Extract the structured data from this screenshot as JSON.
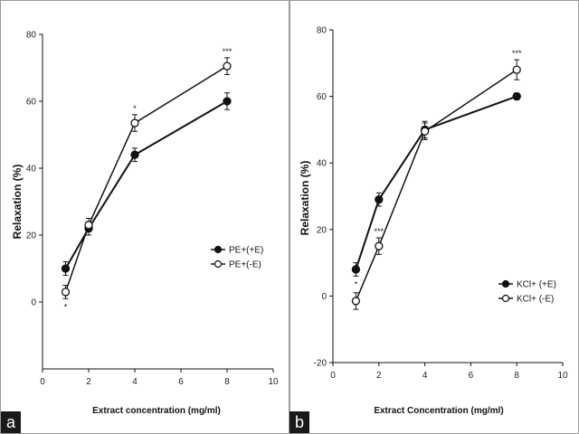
{
  "chart_data": [
    {
      "type": "line",
      "panel_label": "a",
      "xlabel": "Extract concentration (mg/ml)",
      "ylabel": "Relaxation (%)",
      "xlim": [
        0,
        10
      ],
      "ylim": [
        -20,
        80
      ],
      "xticks": [
        0,
        2,
        4,
        6,
        8,
        10
      ],
      "yticks": [
        0,
        20,
        40,
        60,
        80
      ],
      "grid": false,
      "legend_position": "center-right",
      "series": [
        {
          "name": "PE+(+E)",
          "marker": "filled-circle",
          "points": [
            {
              "x": 1,
              "y": 10,
              "err": 2
            },
            {
              "x": 2,
              "y": 22,
              "err": 2
            },
            {
              "x": 4,
              "y": 44,
              "err": 2
            },
            {
              "x": 8,
              "y": 60,
              "err": 2.5
            }
          ]
        },
        {
          "name": "PE+(-E)",
          "marker": "open-circle",
          "points": [
            {
              "x": 1,
              "y": 3,
              "err": 2
            },
            {
              "x": 2,
              "y": 23,
              "err": 2
            },
            {
              "x": 4,
              "y": 53.5,
              "err": 2.5
            },
            {
              "x": 8,
              "y": 70.5,
              "err": 2.5
            }
          ]
        }
      ],
      "annotations": [
        {
          "text": "*",
          "x": 1,
          "y": 3,
          "side": "below"
        },
        {
          "text": "*",
          "x": 4,
          "y": 53.5,
          "side": "above"
        },
        {
          "text": "***",
          "x": 8,
          "y": 70.5,
          "side": "above"
        }
      ]
    },
    {
      "type": "line",
      "panel_label": "b",
      "xlabel": "Extract Concentration (mg/ml)",
      "ylabel": "Relaxation (%)",
      "xlim": [
        0,
        10
      ],
      "ylim": [
        -20,
        80
      ],
      "xticks": [
        0,
        2,
        4,
        6,
        8,
        10
      ],
      "yticks": [
        -20,
        0,
        20,
        40,
        60,
        80
      ],
      "grid": false,
      "legend_position": "bottom-right",
      "series": [
        {
          "name": "KCl+ (+E)",
          "marker": "filled-circle",
          "points": [
            {
              "x": 1,
              "y": 8,
              "err": 2
            },
            {
              "x": 2,
              "y": 29,
              "err": 2
            },
            {
              "x": 4,
              "y": 50,
              "err": 2.5
            },
            {
              "x": 8,
              "y": 60,
              "err": 1
            }
          ]
        },
        {
          "name": "KCl+ (-E)",
          "marker": "open-circle",
          "points": [
            {
              "x": 1,
              "y": -1.5,
              "err": 2.5
            },
            {
              "x": 2,
              "y": 15,
              "err": 2.5
            },
            {
              "x": 4,
              "y": 49.5,
              "err": 2.5
            },
            {
              "x": 8,
              "y": 68,
              "err": 3
            }
          ]
        }
      ],
      "annotations": [
        {
          "text": "*",
          "x": 1,
          "y": 8,
          "side": "below"
        },
        {
          "text": "***",
          "x": 2,
          "y": 15,
          "side": "above"
        },
        {
          "text": "***",
          "x": 8,
          "y": 68,
          "side": "above"
        }
      ]
    }
  ]
}
